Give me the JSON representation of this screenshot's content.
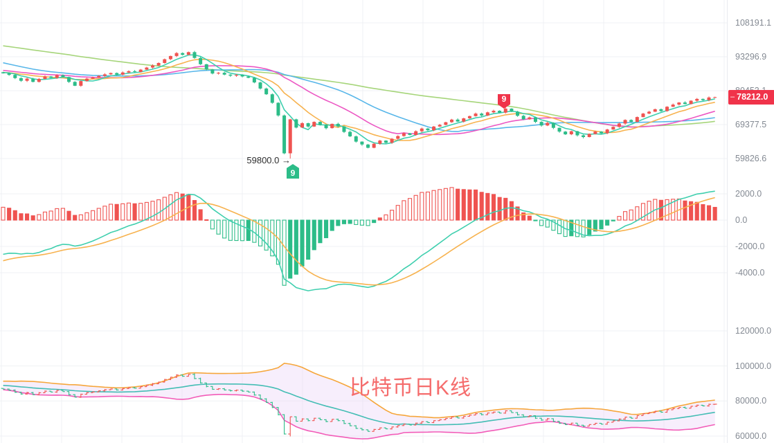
{
  "watermark": {
    "text": "比特币日K线"
  },
  "price_axis": {
    "current_label": "78212.0",
    "current_dash": "–"
  },
  "annotations": {
    "low_label": "59800.0",
    "low_arrow": "→",
    "sell_setup_label": "9",
    "buy_setup_label": "9"
  },
  "colors": {
    "bull": "#ef5350",
    "bear": "#2cbc88",
    "ma5": "#3ecfae",
    "ma10": "#f7b24e",
    "ma20": "#ec57c3",
    "ma30": "#57b6e9",
    "ma60": "#a6d57a",
    "dif": "#3ecfae",
    "dea": "#f7b24e",
    "boll_upper": "#f6a63b",
    "boll_mid": "#43bdb4",
    "boll_lower": "#f25cb8",
    "boll_fill": "#e9d3f7",
    "axis_text": "#848a93",
    "badge_bg": "#f0334a",
    "watermark": "#f56c6c",
    "grid": "#eff1f4",
    "annotation_text": "#2e2e2e"
  },
  "chart_data": [
    {
      "type": "candlestick",
      "x_unit": "day",
      "legend_position": "none",
      "grid": true,
      "y_axis": {
        "scale": "log",
        "ticks": [
          {
            "value": 108191.1,
            "label": "108191.1"
          },
          {
            "value": 93296.9,
            "label": "93296.9"
          },
          {
            "value": 80453.1,
            "label": "80453.1"
          },
          {
            "value": 69377.5,
            "label": "69377.5"
          },
          {
            "value": 59826.6,
            "label": "59826.6"
          }
        ]
      },
      "last_price": {
        "value": 78212.0,
        "label": "78212.0"
      },
      "markers": {
        "low": {
          "index": 48,
          "price": 59800.0,
          "label": "59800.0"
        },
        "buy_setup": {
          "index": 48,
          "label": "9"
        },
        "sell_setup": {
          "index": 84,
          "label": "9"
        }
      },
      "ma_periods": [
        60,
        30,
        20,
        10,
        5
      ],
      "prehistory": [
        105500,
        106100,
        104900,
        105700,
        106400,
        105200,
        104500,
        105600,
        106200,
        104900,
        104100,
        105300,
        106000,
        105100,
        104200,
        105200,
        105900,
        105000,
        104100,
        104700,
        105100,
        104300,
        104800,
        105400,
        104400,
        103600,
        104300,
        104900,
        103900,
        103000,
        102400,
        101500,
        100600,
        99800,
        98700,
        97600,
        96400,
        95100,
        93900,
        92700,
        91800,
        90800,
        90000,
        89300,
        89000,
        88800,
        88300,
        88000,
        87600,
        87900,
        87400,
        87100,
        87500,
        87000,
        86800,
        87200,
        86900,
        87100,
        87400,
        87200
      ],
      "closes": [
        86800,
        86200,
        85000,
        84000,
        84800,
        83600,
        84700,
        85600,
        85100,
        86100,
        85400,
        83600,
        82200,
        83900,
        84800,
        85200,
        85800,
        86400,
        86900,
        86300,
        87100,
        87600,
        87300,
        88200,
        89000,
        89800,
        90800,
        92300,
        93600,
        94800,
        94100,
        95200,
        92800,
        90300,
        88300,
        86700,
        87000,
        86300,
        85900,
        86200,
        85600,
        85100,
        83400,
        81200,
        79200,
        76300,
        72200,
        61200,
        71000,
        68500,
        69800,
        68800,
        70200,
        69300,
        68300,
        69600,
        68800,
        67200,
        65900,
        64400,
        63600,
        62700,
        63800,
        64700,
        64100,
        65200,
        66000,
        66800,
        66300,
        67400,
        68200,
        67700,
        68800,
        69300,
        70100,
        70900,
        70300,
        71300,
        72000,
        72800,
        72200,
        73200,
        73700,
        73100,
        74400,
        73400,
        72100,
        71000,
        71600,
        70200,
        69100,
        69900,
        68400,
        67300,
        66500,
        67400,
        66200,
        65700,
        66600,
        67300,
        66800,
        67900,
        68700,
        69700,
        70800,
        70200,
        71700,
        72800,
        73400,
        74200,
        73600,
        75000,
        75700,
        76400,
        75900,
        77000,
        77600,
        77200,
        78100,
        78212
      ]
    },
    {
      "type": "macd",
      "params": {
        "fast": 12,
        "slow": 26,
        "signal": 9,
        "histogram_mult": 2
      },
      "grid": true,
      "y_axis": {
        "scale": "linear",
        "ticks": [
          {
            "value": 2000,
            "label": "2000.0"
          },
          {
            "value": 0,
            "label": "0.0"
          },
          {
            "value": -2000,
            "label": "-2000.0"
          },
          {
            "value": -4000,
            "label": "-4000.0"
          }
        ]
      }
    },
    {
      "type": "ohlc_bollinger",
      "params": {
        "period": 20,
        "mult": 2
      },
      "grid": true,
      "watermark": "比特币日K线",
      "y_axis": {
        "scale": "linear",
        "ticks": [
          {
            "value": 120000,
            "label": "120000.0"
          },
          {
            "value": 100000,
            "label": "100000.0"
          },
          {
            "value": 80000,
            "label": "80000.0"
          },
          {
            "value": 60000,
            "label": "60000.0"
          }
        ]
      },
      "boll_prehistory": [
        90800,
        90200,
        91000,
        90400,
        89800,
        90600,
        90000,
        89300,
        89900,
        89100,
        88600,
        89200,
        88500,
        87900,
        88400,
        87800,
        87300,
        87900,
        87600,
        87400
      ]
    }
  ]
}
